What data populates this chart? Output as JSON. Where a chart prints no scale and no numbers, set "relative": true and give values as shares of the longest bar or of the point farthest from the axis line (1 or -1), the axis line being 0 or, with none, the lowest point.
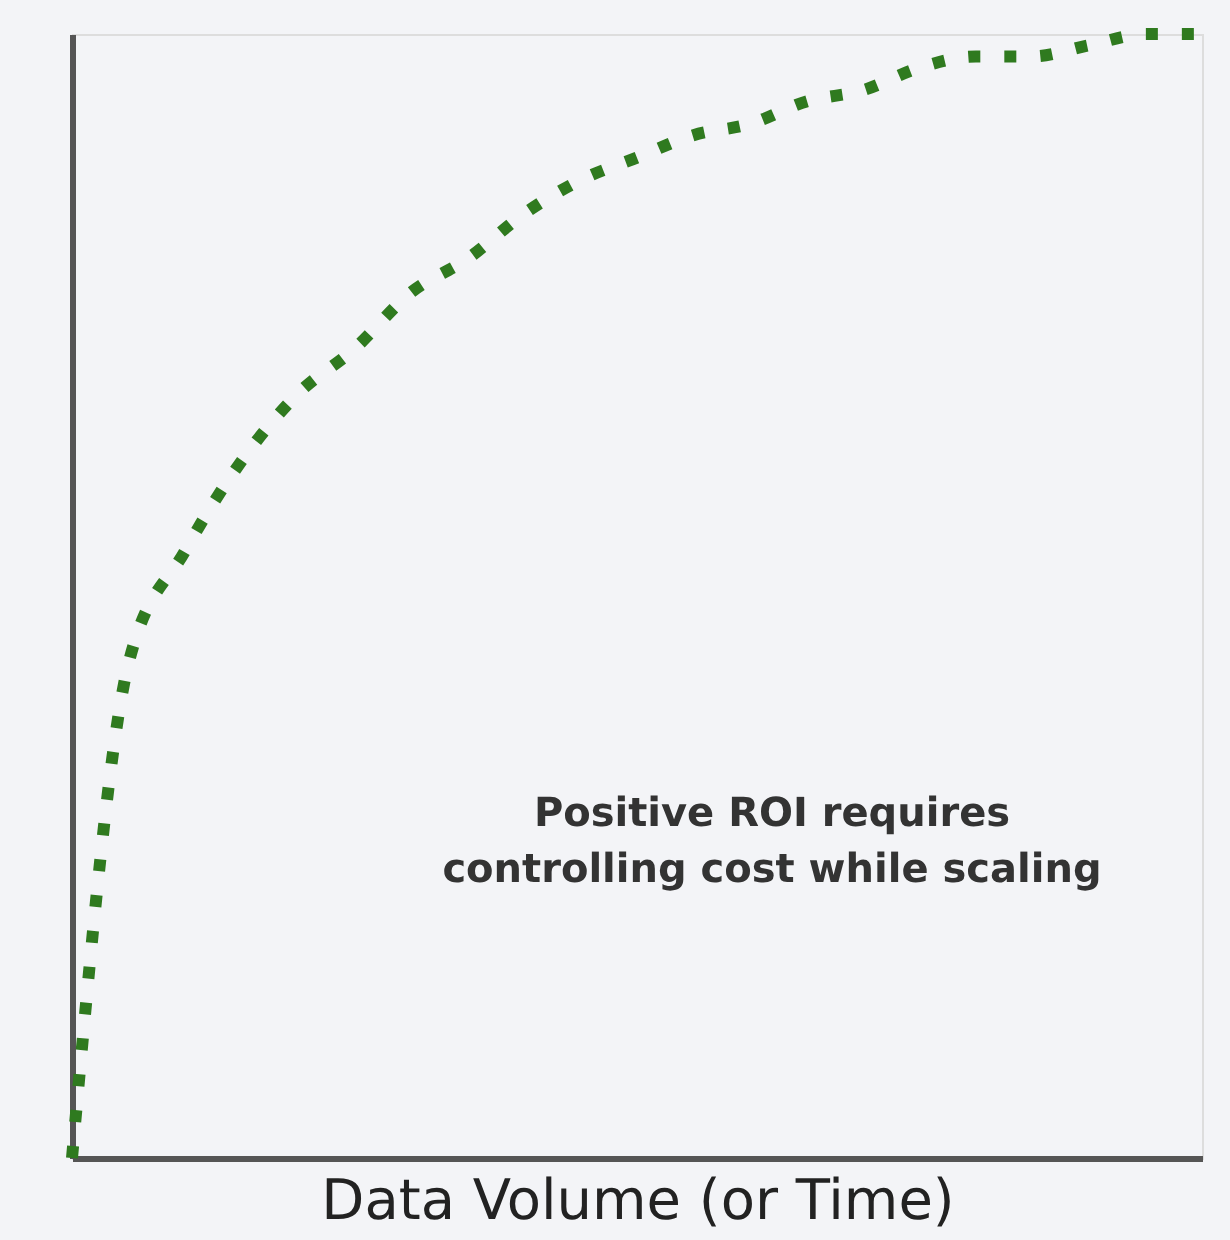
{
  "chart_data": {
    "type": "line",
    "relative": true,
    "xlabel": "Data Volume (or Time)",
    "categories": [
      null,
      null,
      null,
      null,
      null,
      null,
      null,
      null,
      null,
      null,
      null,
      null,
      null,
      null,
      null,
      null,
      null,
      null,
      null,
      null,
      null
    ],
    "series": [
      {
        "color": "#2f7a1f",
        "values": [
          0,
          0.44,
          0.54,
          0.62,
          0.68,
          0.72,
          0.77,
          0.8,
          0.84,
          0.87,
          0.89,
          0.91,
          0.92,
          0.94,
          0.95,
          0.97,
          0.98,
          0.98,
          0.99,
          1.0,
          1.0
        ]
      }
    ],
    "line_style": "dotted",
    "marker": "none",
    "grid": false,
    "tick_labels": false,
    "annotations": [
      "Positive ROI requires controlling cost while scaling"
    ]
  }
}
